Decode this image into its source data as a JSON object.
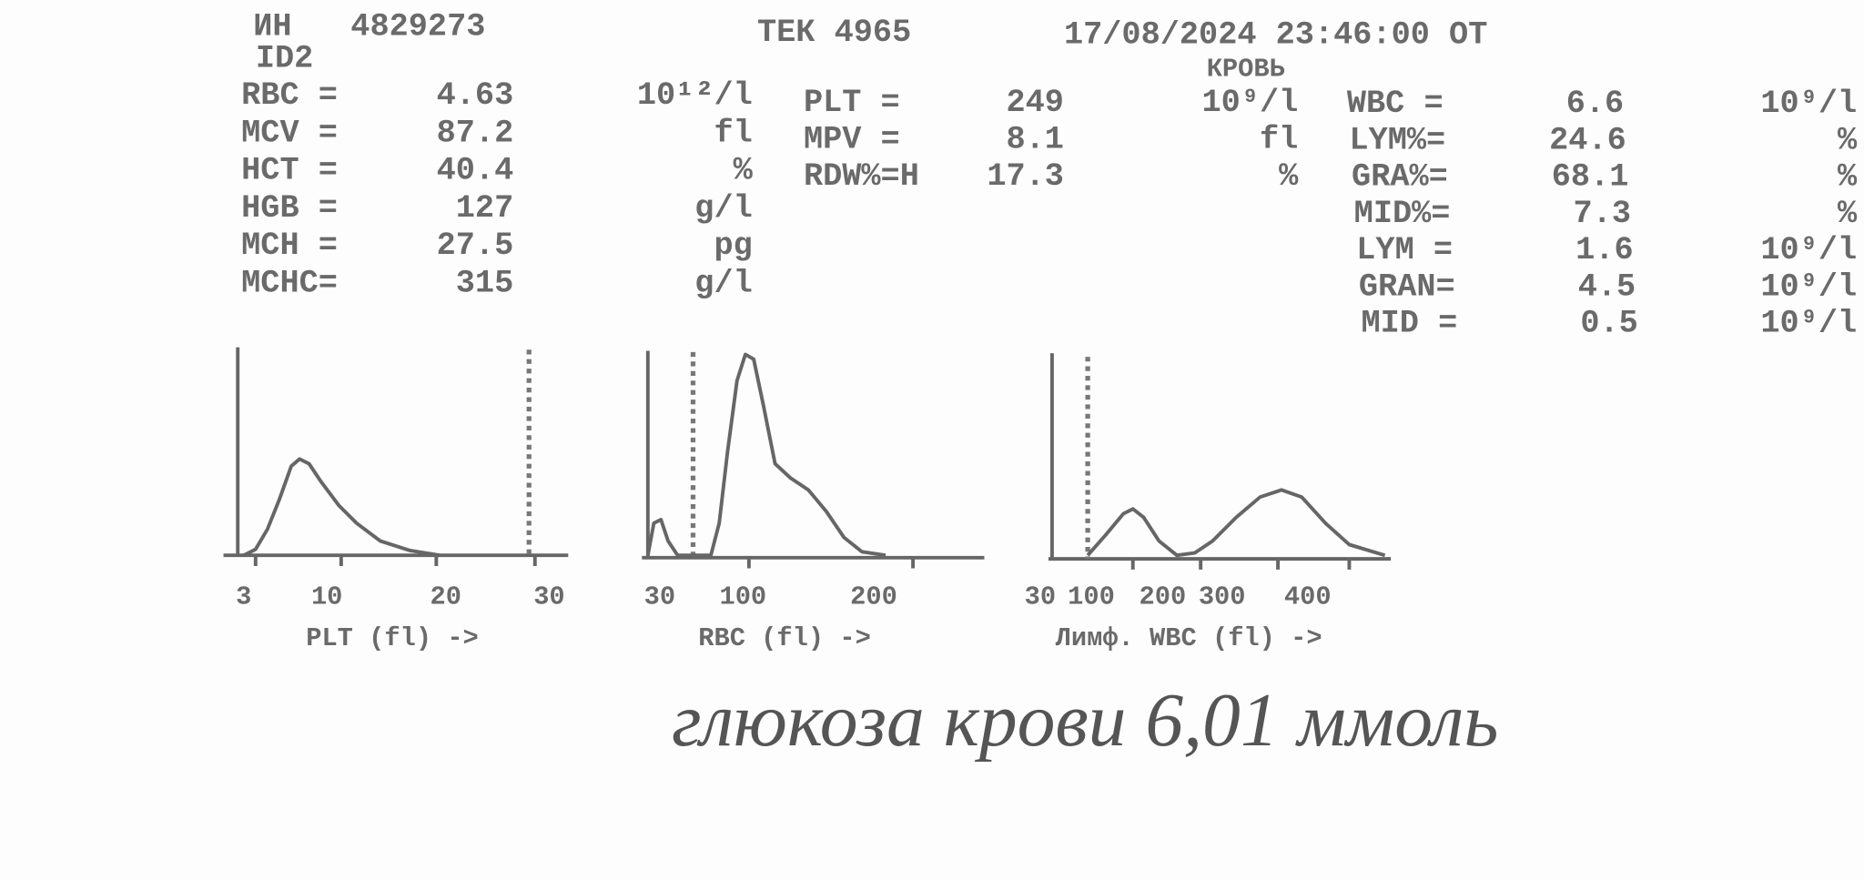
{
  "header": {
    "id_label": "ИН",
    "id": "4829273",
    "id2": "ID2",
    "device": "ТЕК 4965",
    "datetime": "17/08/2024 23:46:00 ОТ",
    "sample": "КРОВЬ"
  },
  "rbc_panel": [
    {
      "name": "RBC =",
      "value": "4.63",
      "unit": "10¹²/l"
    },
    {
      "name": "MCV =",
      "value": "87.2",
      "unit": "fl"
    },
    {
      "name": "HCT =",
      "value": "40.4",
      "unit": "%"
    },
    {
      "name": "HGB =",
      "value": "127",
      "unit": "g/l"
    },
    {
      "name": "MCH =",
      "value": "27.5",
      "unit": "pg"
    },
    {
      "name": "MCHC=",
      "value": "315",
      "unit": "g/l"
    }
  ],
  "plt_panel": [
    {
      "name": "PLT =",
      "value": "249",
      "unit": "10⁹/l"
    },
    {
      "name": "MPV =",
      "value": "8.1",
      "unit": "fl"
    },
    {
      "name": "RDW%=H",
      "value": "17.3",
      "unit": "%"
    }
  ],
  "wbc_panel": [
    {
      "name": "WBC =",
      "value": "6.6",
      "unit": "10⁹/l"
    },
    {
      "name": "LYM%=",
      "value": "24.6",
      "unit": "%"
    },
    {
      "name": "GRA%=",
      "value": "68.1",
      "unit": "%"
    },
    {
      "name": "MID%=",
      "value": "7.3",
      "unit": "%"
    },
    {
      "name": "LYM =",
      "value": "1.6",
      "unit": "10⁹/l"
    },
    {
      "name": "GRAN=",
      "value": "4.5",
      "unit": "10⁹/l"
    },
    {
      "name": "MID =",
      "value": "0.5",
      "unit": "10⁹/l"
    }
  ],
  "histograms": [
    {
      "label": "PLT (fl) ->",
      "ticks": [
        "3",
        "10",
        "20",
        "30"
      ]
    },
    {
      "label": "RBC (fl) ->",
      "ticks": [
        "30",
        "100",
        "200"
      ]
    },
    {
      "label": "Лимф. WBC (fl) ->",
      "ticks": [
        "30",
        "100",
        "200",
        "300",
        "400"
      ]
    }
  ],
  "note": "глюкоза крови 6,01 ммоль"
}
